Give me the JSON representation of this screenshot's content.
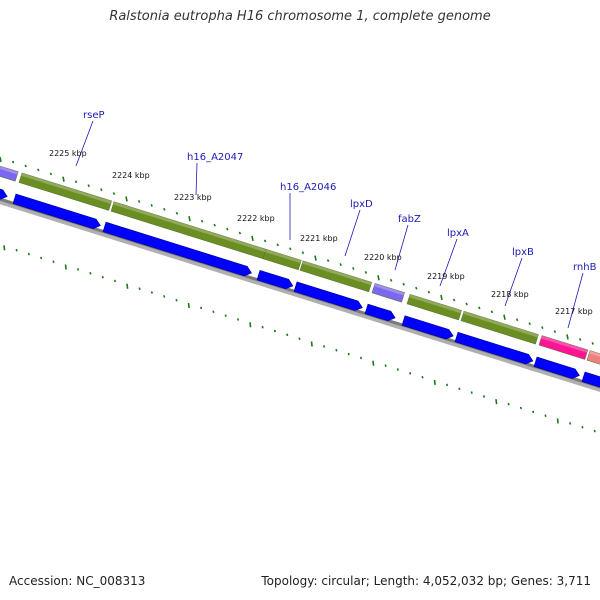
{
  "title": "Ralstonia eutropha H16 chromosome 1, complete genome",
  "footer": {
    "accession": "Accession: NC_008313",
    "summary": "Topology: circular; Length: 4,052,032 bp; Genes: 3,711"
  },
  "colors": {
    "gene_label": "#1a1ab4",
    "cds_feature": "#0000ff",
    "gene_feature": "#6b8e23",
    "rRNA_or_other": "#7b68ee",
    "misc_feature": "#ff1493",
    "tick": "#1a7a1a",
    "backbone": "#808080"
  },
  "gene_labels": [
    "rseP",
    "h16_A2047",
    "h16_A2046",
    "lpxD",
    "fabZ",
    "lpxA",
    "lpxB",
    "rnhB"
  ],
  "kbp_labels": [
    "2225 kbp",
    "2224 kbp",
    "2223 kbp",
    "2222 kbp",
    "2221 kbp",
    "2220 kbp",
    "2219 kbp",
    "2218 kbp",
    "2217 kbp"
  ]
}
